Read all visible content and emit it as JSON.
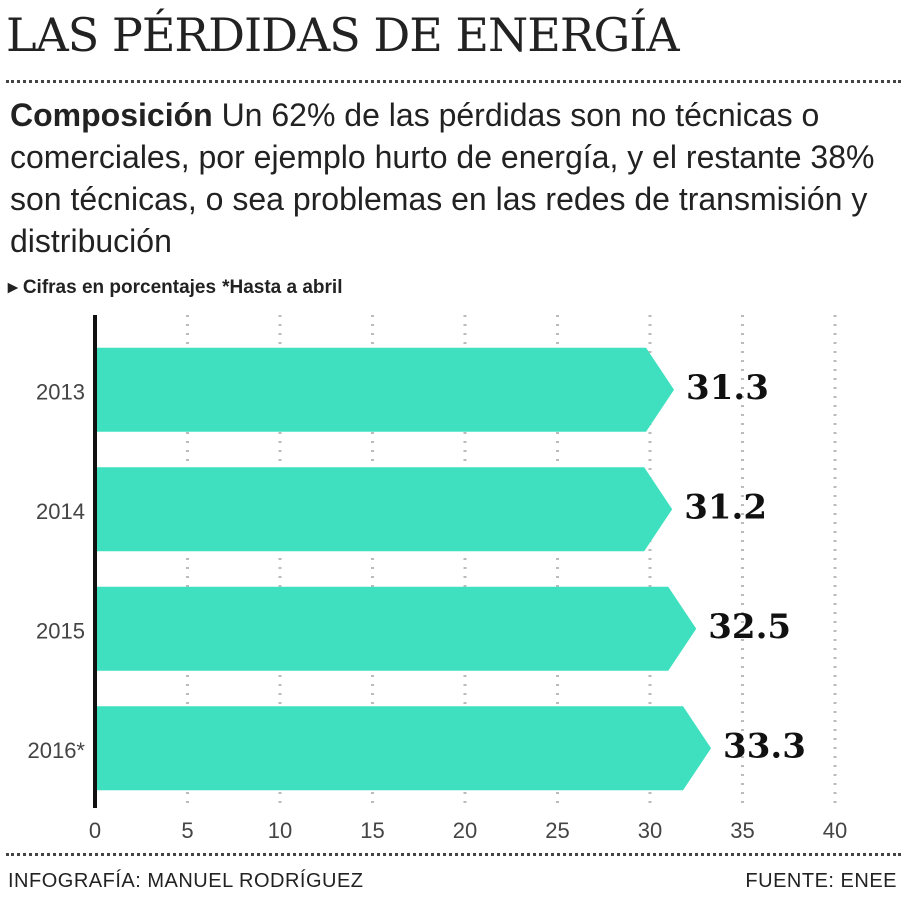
{
  "chart_data": {
    "type": "bar",
    "orientation": "horizontal",
    "title": "LAS PÉRDIDAS DE ENERGÍA",
    "subtitle_label": "Composición",
    "subtitle": "Un 62% de las pérdidas son no técnicas o comerciales, por ejemplo hurto de energía, y el restante 38% son técnicas, o sea problemas en las redes de transmisión y distribución",
    "note": "Cifras en porcentajes",
    "footnote": "*Hasta a abril",
    "categories": [
      "2013",
      "2014",
      "2015",
      "2016*"
    ],
    "values": [
      31.3,
      31.2,
      32.5,
      33.3
    ],
    "color": "#3ee0bf",
    "xlim": [
      0,
      40
    ],
    "xticks": [
      0,
      5,
      10,
      15,
      20,
      25,
      30,
      35,
      40
    ],
    "grid": true,
    "credit": "INFOGRAFÍA: MANUEL RODRÍGUEZ",
    "source": "FUENTE: ENEE"
  }
}
